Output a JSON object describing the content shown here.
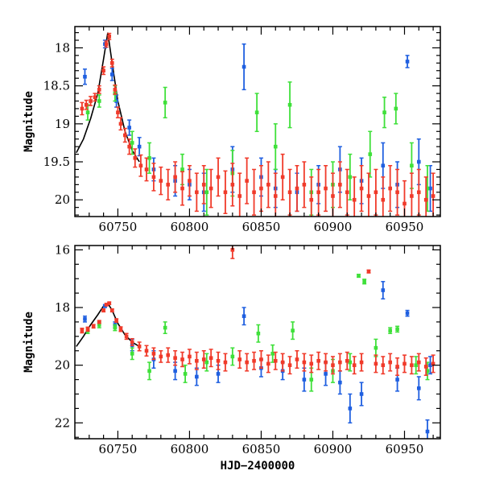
{
  "chart_data": [
    {
      "type": "scatter",
      "panel": "top",
      "title": "",
      "xlabel": "",
      "ylabel": "Magnitude",
      "xlim": [
        60720,
        60975
      ],
      "ylim": [
        20.22,
        17.72
      ],
      "x_ticks": [
        60750,
        60800,
        60850,
        60900,
        60950
      ],
      "y_ticks": [
        18,
        18.5,
        19,
        19.5,
        20
      ],
      "y_tick_labels": [
        "18",
        "18.5",
        "19",
        "19.5",
        "20"
      ],
      "model_curve": [
        [
          60721,
          19.38
        ],
        [
          60726,
          19.2
        ],
        [
          60731,
          18.93
        ],
        [
          60736,
          18.6
        ],
        [
          60740,
          18.15
        ],
        [
          60743,
          17.8
        ],
        [
          60746,
          18.2
        ],
        [
          60750,
          18.7
        ],
        [
          60755,
          19.1
        ],
        [
          60760,
          19.35
        ],
        [
          60765,
          19.5
        ]
      ],
      "series": [
        {
          "name": "blue",
          "color": "#1f5fe0",
          "x": [
            60727,
            60741,
            60746,
            60749,
            60758,
            60765,
            60775,
            60790,
            60800,
            60810,
            60830,
            60838,
            60850,
            60860,
            60875,
            60890,
            60905,
            60920,
            60935,
            60945,
            60952,
            60960,
            60968
          ],
          "y": [
            18.38,
            17.95,
            18.35,
            18.7,
            19.05,
            19.3,
            19.6,
            19.75,
            19.8,
            19.9,
            19.6,
            18.25,
            19.7,
            19.85,
            19.9,
            19.8,
            19.6,
            19.75,
            19.55,
            19.8,
            18.18,
            19.5,
            19.85
          ],
          "err": [
            0.1,
            0.05,
            0.08,
            0.08,
            0.1,
            0.12,
            0.15,
            0.2,
            0.2,
            0.25,
            0.3,
            0.3,
            0.25,
            0.25,
            0.25,
            0.25,
            0.3,
            0.3,
            0.3,
            0.3,
            0.08,
            0.3,
            0.3
          ]
        },
        {
          "name": "green",
          "color": "#3fe03a",
          "x": [
            60729,
            60737,
            60748,
            60760,
            60772,
            60783,
            60795,
            60812,
            60830,
            60847,
            60860,
            60870,
            60885,
            60900,
            60912,
            60926,
            60936,
            60944,
            60955,
            60966
          ],
          "y": [
            18.85,
            18.7,
            18.6,
            19.25,
            19.45,
            18.72,
            19.6,
            19.9,
            19.65,
            18.85,
            19.3,
            18.75,
            19.9,
            19.8,
            19.7,
            19.4,
            18.85,
            18.8,
            19.55,
            19.85
          ],
          "err": [
            0.1,
            0.08,
            0.1,
            0.15,
            0.2,
            0.2,
            0.2,
            0.3,
            0.3,
            0.25,
            0.3,
            0.3,
            0.3,
            0.3,
            0.3,
            0.3,
            0.2,
            0.2,
            0.3,
            0.3
          ]
        },
        {
          "name": "red",
          "color": "#f03a2a",
          "x": [
            60725,
            60728,
            60731,
            60734,
            60737,
            60740,
            60742,
            60744,
            60746,
            60748,
            60750,
            60752,
            60755,
            60758,
            60762,
            60766,
            60770,
            60775,
            60780,
            60785,
            60790,
            60795,
            60800,
            60805,
            60810,
            60815,
            60820,
            60825,
            60830,
            60835,
            60840,
            60845,
            60850,
            60855,
            60860,
            60865,
            60870,
            60875,
            60880,
            60885,
            60890,
            60895,
            60900,
            60905,
            60910,
            60915,
            60920,
            60925,
            60930,
            60935,
            60940,
            60945,
            60950,
            60955,
            60960,
            60965,
            60970
          ],
          "y": [
            18.8,
            18.75,
            18.7,
            18.65,
            18.55,
            18.3,
            17.95,
            17.85,
            18.2,
            18.55,
            18.85,
            19.0,
            19.15,
            19.3,
            19.45,
            19.55,
            19.6,
            19.7,
            19.75,
            19.8,
            19.7,
            19.85,
            19.75,
            19.9,
            19.8,
            19.85,
            19.7,
            19.9,
            19.8,
            19.95,
            19.75,
            19.9,
            19.85,
            19.8,
            19.95,
            19.7,
            19.9,
            19.85,
            19.8,
            20.0,
            19.9,
            19.85,
            19.95,
            19.8,
            19.9,
            20.0,
            19.85,
            19.95,
            19.9,
            20.0,
            19.85,
            19.9,
            20.05,
            19.95,
            19.9,
            20.0,
            19.95
          ],
          "err": [
            0.08,
            0.06,
            0.06,
            0.05,
            0.05,
            0.05,
            0.04,
            0.04,
            0.05,
            0.06,
            0.07,
            0.08,
            0.09,
            0.1,
            0.12,
            0.14,
            0.15,
            0.18,
            0.18,
            0.2,
            0.2,
            0.22,
            0.2,
            0.25,
            0.25,
            0.25,
            0.25,
            0.28,
            0.28,
            0.3,
            0.3,
            0.3,
            0.3,
            0.3,
            0.3,
            0.3,
            0.3,
            0.3,
            0.3,
            0.3,
            0.3,
            0.3,
            0.3,
            0.3,
            0.3,
            0.3,
            0.3,
            0.3,
            0.3,
            0.3,
            0.3,
            0.3,
            0.3,
            0.3,
            0.3,
            0.3,
            0.3
          ]
        }
      ]
    },
    {
      "type": "scatter",
      "panel": "bottom",
      "title": "",
      "xlabel": "HJD−2400000",
      "ylabel": "Magnitude",
      "xlim": [
        60720,
        60975
      ],
      "ylim": [
        22.55,
        15.85
      ],
      "x_ticks": [
        60750,
        60800,
        60850,
        60900,
        60950
      ],
      "x_tick_labels": [
        "60750",
        "60800",
        "60850",
        "60900",
        "60950"
      ],
      "y_ticks": [
        16,
        18,
        20,
        22
      ],
      "y_tick_labels": [
        "16",
        "18",
        "20",
        "22"
      ],
      "model_curve": [
        [
          60721,
          19.35
        ],
        [
          60726,
          19.0
        ],
        [
          60731,
          18.6
        ],
        [
          60736,
          18.25
        ],
        [
          60740,
          17.95
        ],
        [
          60743,
          17.85
        ],
        [
          60746,
          18.1
        ],
        [
          60750,
          18.55
        ],
        [
          60755,
          18.95
        ],
        [
          60760,
          19.2
        ],
        [
          60765,
          19.35
        ]
      ],
      "series": [
        {
          "name": "blue",
          "color": "#1f5fe0",
          "x": [
            60727,
            60741,
            60748,
            60760,
            60775,
            60790,
            60805,
            60820,
            60838,
            60850,
            60865,
            60880,
            60895,
            60905,
            60912,
            60920,
            60935,
            60945,
            60952,
            60960,
            60966,
            60968
          ],
          "y": [
            18.4,
            17.95,
            18.6,
            19.3,
            19.8,
            20.2,
            20.4,
            20.3,
            18.3,
            20.1,
            20.2,
            20.5,
            20.3,
            20.6,
            21.5,
            21.0,
            17.4,
            20.5,
            18.2,
            20.8,
            22.3,
            20.0
          ],
          "err": [
            0.1,
            0.05,
            0.1,
            0.2,
            0.3,
            0.3,
            0.3,
            0.3,
            0.3,
            0.3,
            0.3,
            0.4,
            0.4,
            0.4,
            0.5,
            0.4,
            0.3,
            0.4,
            0.1,
            0.4,
            0.4,
            0.3
          ]
        },
        {
          "name": "green",
          "color": "#3fe03a",
          "x": [
            60729,
            60737,
            60748,
            60760,
            60772,
            60783,
            60797,
            60812,
            60830,
            60848,
            60858,
            60872,
            60885,
            60900,
            60912,
            60918,
            60922,
            60930,
            60940,
            60945,
            60958,
            60966
          ],
          "y": [
            18.8,
            18.6,
            18.7,
            19.6,
            20.2,
            18.7,
            20.3,
            19.9,
            19.7,
            18.9,
            19.6,
            18.8,
            20.5,
            20.2,
            19.9,
            16.9,
            17.1,
            19.4,
            18.8,
            18.75,
            20.0,
            20.2
          ],
          "err": [
            0.1,
            0.1,
            0.1,
            0.2,
            0.3,
            0.2,
            0.3,
            0.3,
            0.3,
            0.3,
            0.3,
            0.3,
            0.4,
            0.4,
            0.3,
            0.05,
            0.08,
            0.3,
            0.1,
            0.1,
            0.3,
            0.3
          ]
        },
        {
          "name": "red",
          "color": "#f03a2a",
          "x": [
            60725,
            60729,
            60733,
            60737,
            60740,
            60742,
            60744,
            60746,
            60749,
            60752,
            60756,
            60760,
            60765,
            60770,
            60775,
            60780,
            60785,
            60790,
            60795,
            60800,
            60805,
            60810,
            60815,
            60820,
            60825,
            60830,
            60835,
            60840,
            60845,
            60850,
            60855,
            60860,
            60865,
            60870,
            60875,
            60880,
            60885,
            60890,
            60895,
            60900,
            60905,
            60910,
            60915,
            60920,
            60925,
            60930,
            60935,
            60940,
            60945,
            60950,
            60955,
            60960,
            60965,
            60970
          ],
          "y": [
            18.8,
            18.75,
            18.65,
            18.5,
            18.1,
            17.9,
            17.85,
            18.1,
            18.45,
            18.75,
            19.0,
            19.2,
            19.35,
            19.5,
            19.6,
            19.7,
            19.65,
            19.75,
            19.8,
            19.7,
            19.85,
            19.8,
            19.75,
            19.85,
            19.9,
            16.0,
            19.8,
            19.9,
            19.85,
            19.8,
            19.95,
            19.85,
            19.9,
            20.0,
            19.8,
            19.9,
            19.95,
            19.85,
            19.9,
            20.0,
            19.9,
            19.85,
            20.0,
            19.9,
            16.75,
            19.95,
            20.0,
            19.9,
            20.05,
            19.95,
            20.0,
            19.9,
            20.05,
            19.95
          ],
          "err": [
            0.08,
            0.07,
            0.06,
            0.05,
            0.05,
            0.04,
            0.04,
            0.05,
            0.06,
            0.08,
            0.1,
            0.12,
            0.15,
            0.18,
            0.2,
            0.2,
            0.25,
            0.25,
            0.25,
            0.25,
            0.3,
            0.3,
            0.3,
            0.3,
            0.3,
            0.3,
            0.3,
            0.3,
            0.3,
            0.3,
            0.3,
            0.3,
            0.3,
            0.3,
            0.3,
            0.3,
            0.3,
            0.3,
            0.3,
            0.3,
            0.3,
            0.3,
            0.3,
            0.3,
            0.05,
            0.3,
            0.3,
            0.3,
            0.3,
            0.3,
            0.3,
            0.3,
            0.3,
            0.3
          ]
        }
      ]
    }
  ]
}
